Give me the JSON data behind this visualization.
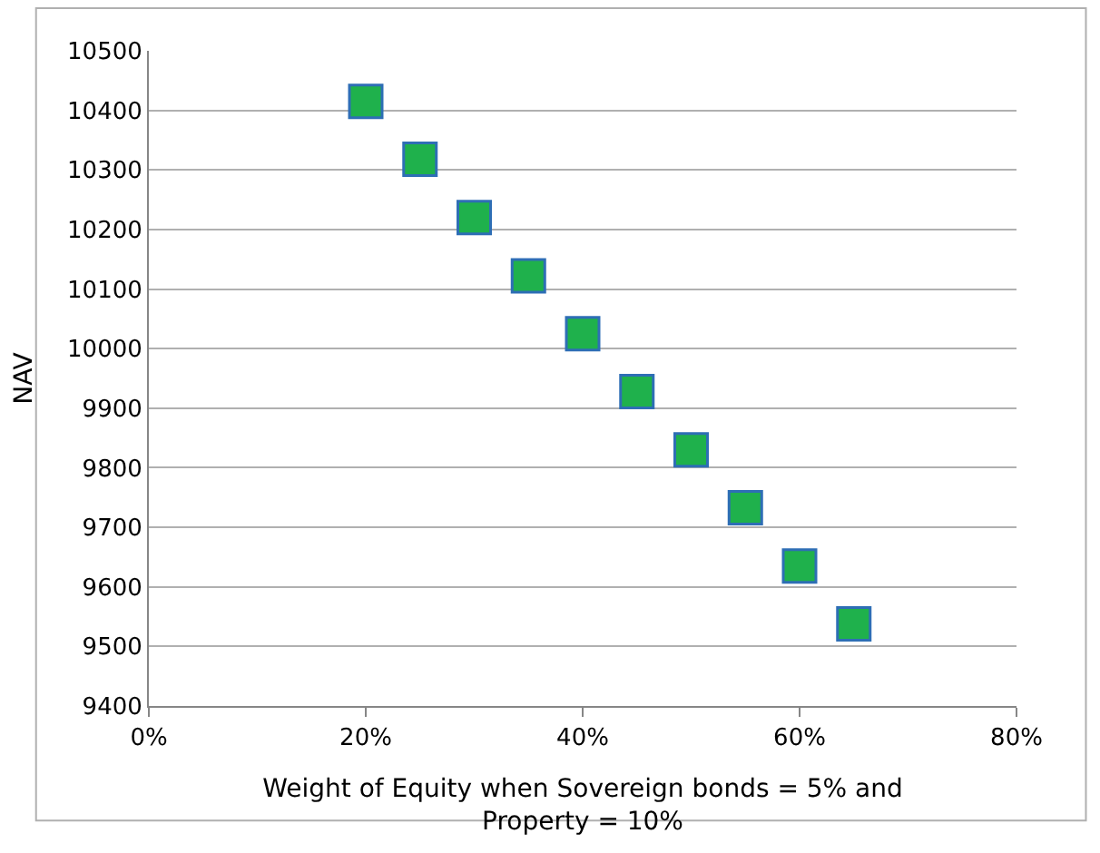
{
  "chart_data": {
    "type": "scatter",
    "xlabel": "Weight of Equity when Sovereign bonds = 5% and\nProperty = 10%",
    "ylabel": "NAV",
    "x": [
      20,
      25,
      30,
      35,
      40,
      45,
      50,
      55,
      60,
      65
    ],
    "series": [
      {
        "color": "#1fb14c",
        "values": [
          10415,
          10318,
          10220,
          10122,
          10025,
          9928,
          9830,
          9733,
          9635,
          9538
        ]
      }
    ],
    "xlim": [
      0,
      80
    ],
    "xticks": [
      {
        "value": 0,
        "label": "0%"
      },
      {
        "value": 20,
        "label": "20%"
      },
      {
        "value": 40,
        "label": "40%"
      },
      {
        "value": 60,
        "label": "60%"
      },
      {
        "value": 80,
        "label": "80%"
      }
    ],
    "ylim": [
      9400,
      10500
    ],
    "yticks": [
      9400,
      9500,
      9600,
      9700,
      9800,
      9900,
      10000,
      10100,
      10200,
      10300,
      10400,
      10500
    ],
    "grid": "y",
    "marker": "square"
  }
}
